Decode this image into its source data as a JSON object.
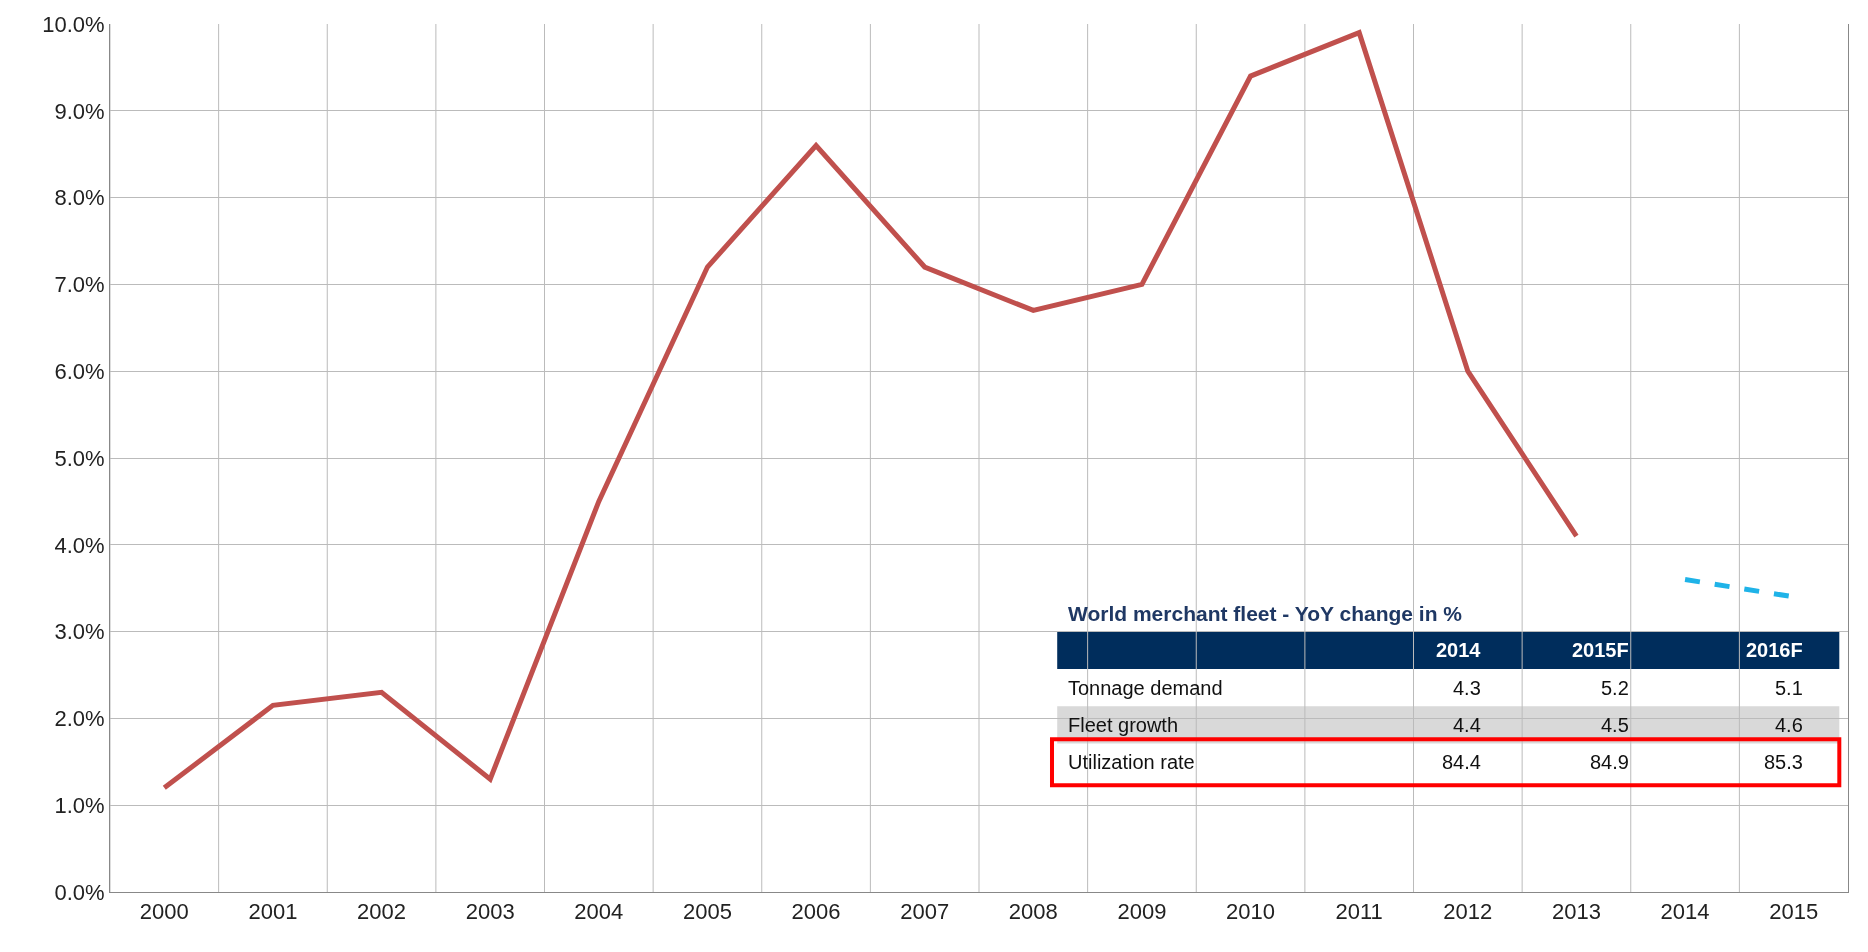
{
  "chart_data": {
    "type": "line",
    "categories": [
      "2000",
      "2001",
      "2002",
      "2003",
      "2004",
      "2005",
      "2006",
      "2007",
      "2008",
      "2009",
      "2010",
      "2011",
      "2012",
      "2013",
      "2014",
      "2015"
    ],
    "series": [
      {
        "color": "#c0504d",
        "values": [
          1.2,
          2.15,
          2.3,
          1.3,
          4.5,
          7.2,
          8.6,
          7.2,
          6.7,
          7.0,
          9.4,
          9.9,
          6.0,
          4.1,
          null,
          null
        ]
      },
      {
        "color": "#1fb3e8",
        "line_style": "dashed",
        "values": [
          null,
          null,
          null,
          null,
          null,
          null,
          null,
          null,
          null,
          null,
          null,
          null,
          null,
          null,
          3.6,
          3.4
        ]
      }
    ],
    "ylim": [
      0,
      10
    ],
    "yticks": [
      {
        "value": 0,
        "label": "0.0%"
      },
      {
        "value": 1,
        "label": "1.0%"
      },
      {
        "value": 2,
        "label": "2.0%"
      },
      {
        "value": 3,
        "label": "3.0%"
      },
      {
        "value": 4,
        "label": "4.0%"
      },
      {
        "value": 5,
        "label": "5.0%"
      },
      {
        "value": 6,
        "label": "6.0%"
      },
      {
        "value": 7,
        "label": "7.0%"
      },
      {
        "value": 8,
        "label": "8.0%"
      },
      {
        "value": 9,
        "label": "9.0%"
      },
      {
        "value": 10,
        "label": "10.0%"
      }
    ],
    "grid": true,
    "legend": false,
    "marker": "none",
    "line_style": "solid",
    "annotations": [
      "World merchant fleet - YoY change in %",
      "2014",
      "2015F",
      "2016F",
      "Tonnage demand",
      "4.3",
      "5.2",
      "5.1",
      "Fleet growth",
      "4.4",
      "4.5",
      "4.6",
      "Utilization rate",
      "84.4",
      "84.9",
      "85.3"
    ]
  }
}
